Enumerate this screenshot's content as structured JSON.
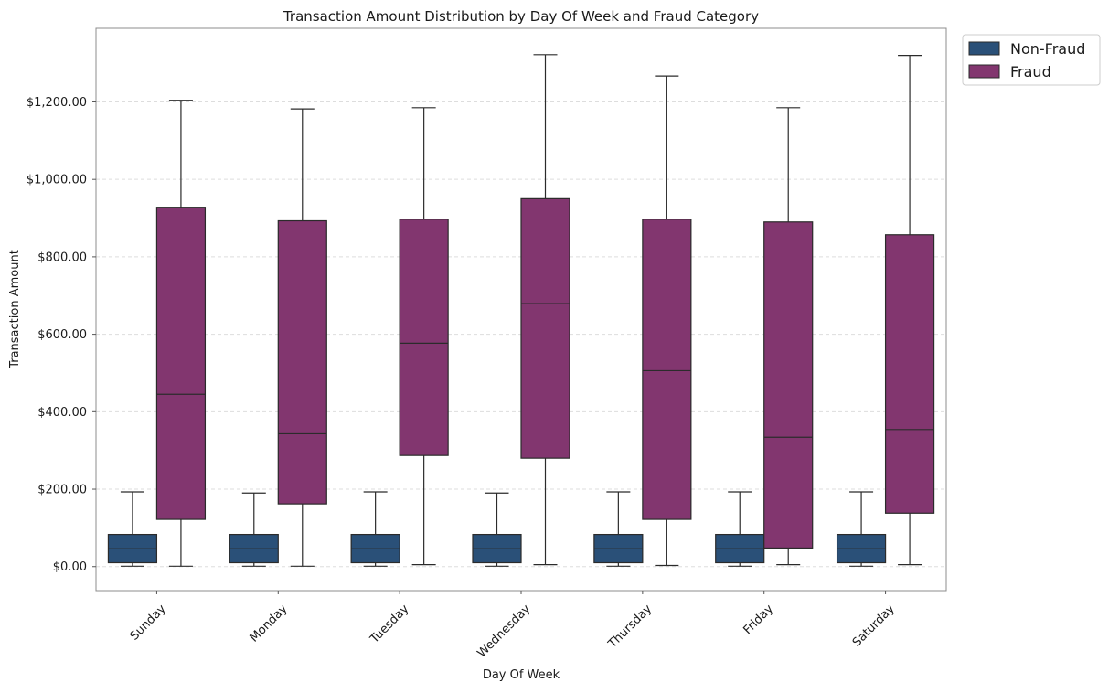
{
  "chart_data": {
    "type": "box",
    "title": "Transaction Amount Distribution by Day Of Week and Fraud Category",
    "xlabel": "Day Of Week",
    "ylabel": "Transaction Amount",
    "categories": [
      "Sunday",
      "Monday",
      "Tuesday",
      "Wednesday",
      "Thursday",
      "Friday",
      "Saturday"
    ],
    "ylim": [
      -62,
      1390
    ],
    "yticks": [
      0,
      200,
      400,
      600,
      800,
      1000,
      1200
    ],
    "ytick_labels": [
      "$0.00",
      "$200.00",
      "$400.00",
      "$600.00",
      "$800.00",
      "$1,000.00",
      "$1,200.00"
    ],
    "grid": "horizontal-dashed",
    "legend_position": "outside-top-right",
    "series": [
      {
        "name": "Non-Fraud",
        "color": "#2a5078",
        "boxes": [
          {
            "min": 1,
            "q1": 10,
            "median": 46,
            "q3": 83,
            "max": 193
          },
          {
            "min": 1,
            "q1": 10,
            "median": 46,
            "q3": 83,
            "max": 190
          },
          {
            "min": 1,
            "q1": 10,
            "median": 46,
            "q3": 83,
            "max": 193
          },
          {
            "min": 1,
            "q1": 10,
            "median": 46,
            "q3": 83,
            "max": 190
          },
          {
            "min": 1,
            "q1": 10,
            "median": 46,
            "q3": 83,
            "max": 193
          },
          {
            "min": 1,
            "q1": 10,
            "median": 46,
            "q3": 83,
            "max": 193
          },
          {
            "min": 1,
            "q1": 10,
            "median": 46,
            "q3": 83,
            "max": 193
          }
        ]
      },
      {
        "name": "Fraud",
        "color": "#82366f",
        "boxes": [
          {
            "min": 1,
            "q1": 122,
            "median": 445,
            "q3": 928,
            "max": 1204
          },
          {
            "min": 1,
            "q1": 162,
            "median": 343,
            "q3": 893,
            "max": 1182
          },
          {
            "min": 5,
            "q1": 287,
            "median": 577,
            "q3": 897,
            "max": 1185
          },
          {
            "min": 5,
            "q1": 280,
            "median": 679,
            "q3": 950,
            "max": 1322
          },
          {
            "min": 3,
            "q1": 122,
            "median": 506,
            "q3": 897,
            "max": 1267
          },
          {
            "min": 5,
            "q1": 48,
            "median": 334,
            "q3": 890,
            "max": 1185
          },
          {
            "min": 5,
            "q1": 138,
            "median": 354,
            "q3": 857,
            "max": 1320
          }
        ]
      }
    ]
  }
}
